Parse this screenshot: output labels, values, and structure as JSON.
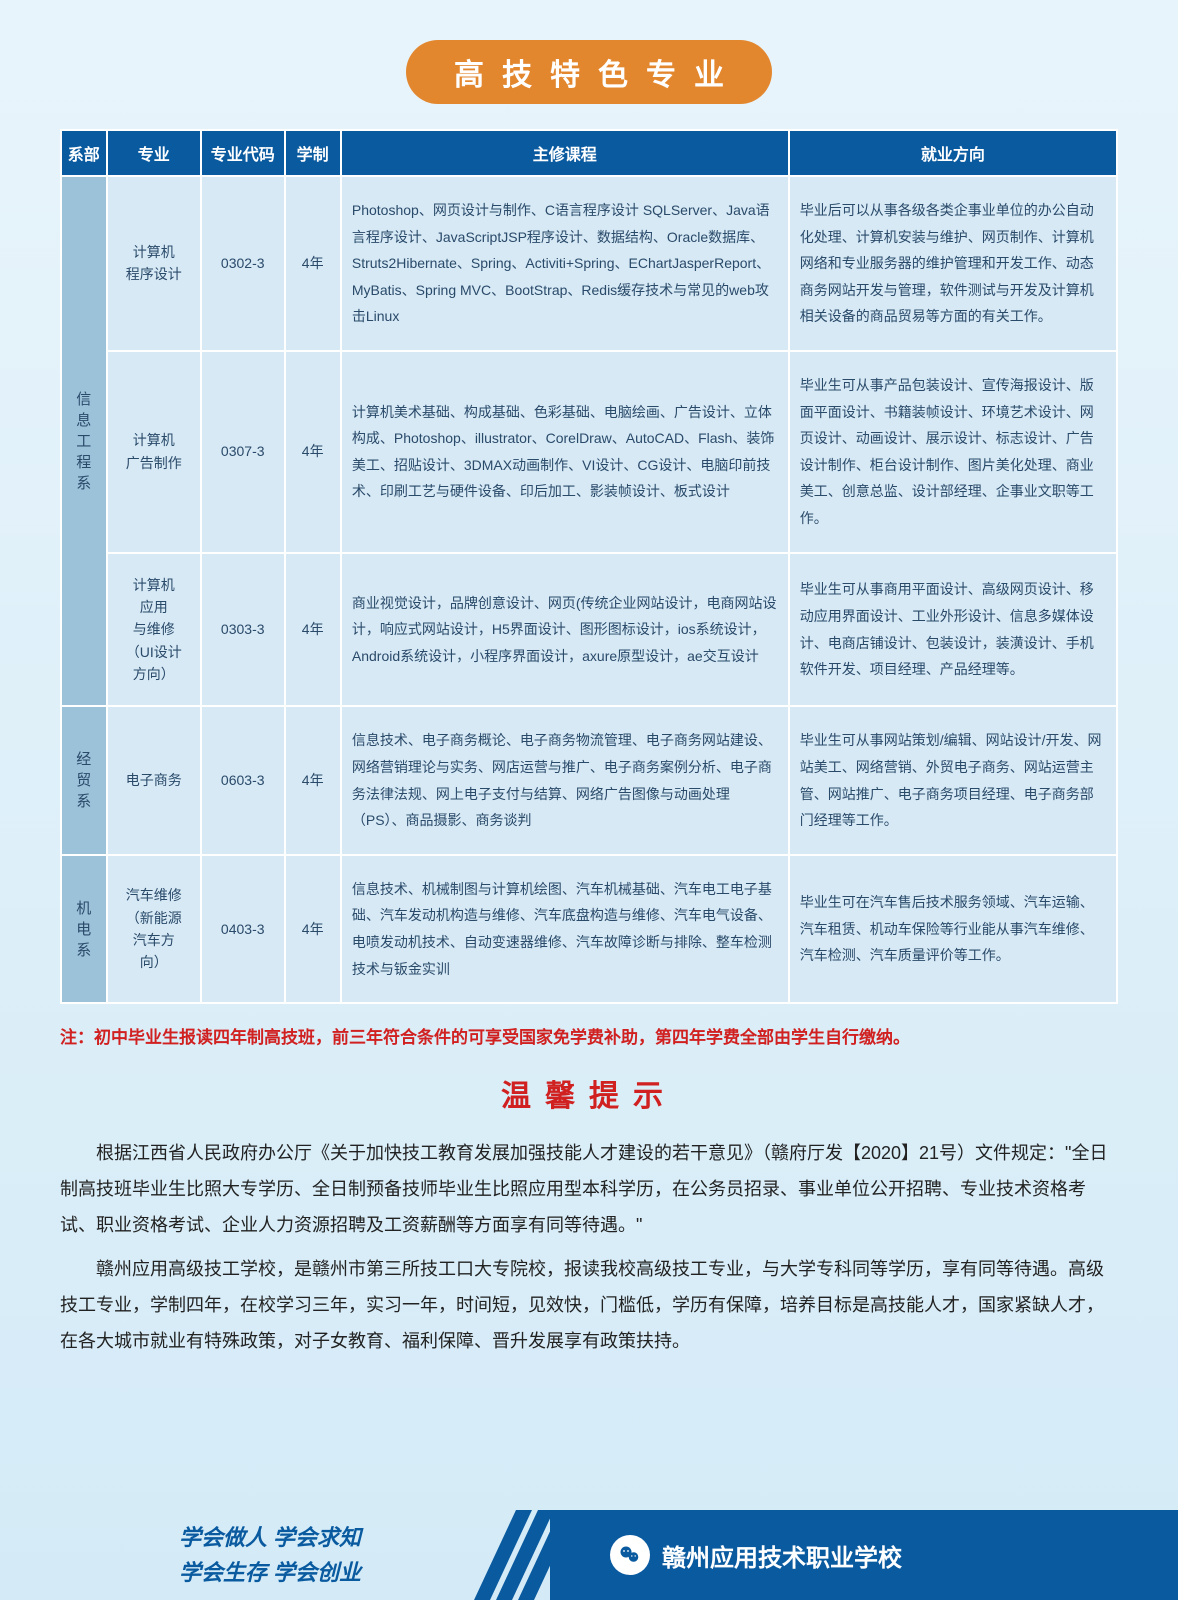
{
  "title": "高技特色专业",
  "columns": [
    "系部",
    "专业",
    "专业代码",
    "学制",
    "主修课程",
    "就业方向"
  ],
  "departments": [
    {
      "name": "信息工程系",
      "rows": [
        {
          "major": "计算机\n程序设计",
          "code": "0302-3",
          "years": "4年",
          "courses": "Photoshop、网页设计与制作、C语言程序设计 SQLServer、Java语言程序设计、JavaScriptJSP程序设计、数据结构、Oracle数据库、Struts2Hibernate、Spring、Activiti+Spring、EChartJasperReport、MyBatis、Spring MVC、BootStrap、Redis缓存技术与常见的web攻击Linux",
          "career": "毕业后可以从事各级各类企事业单位的办公自动化处理、计算机安装与维护、网页制作、计算机网络和专业服务器的维护管理和开发工作、动态商务网站开发与管理，软件测试与开发及计算机相关设备的商品贸易等方面的有关工作。"
        },
        {
          "major": "计算机\n广告制作",
          "code": "0307-3",
          "years": "4年",
          "courses": "计算机美术基础、构成基础、色彩基础、电脑绘画、广告设计、立体构成、Photoshop、illustrator、CorelDraw、AutoCAD、Flash、装饰美工、招贴设计、3DMAX动画制作、VI设计、CG设计、电脑印前技术、印刷工艺与硬件设备、印后加工、影装帧设计、板式设计",
          "career": "毕业生可从事产品包装设计、宣传海报设计、版面平面设计、书籍装帧设计、环境艺术设计、网页设计、动画设计、展示设计、标志设计、广告设计制作、柜台设计制作、图片美化处理、商业美工、创意总监、设计部经理、企事业文职等工作。"
        },
        {
          "major": "计算机\n应用\n与维修\n（UI设计\n方向）",
          "code": "0303-3",
          "years": "4年",
          "courses": "商业视觉设计，品牌创意设计、网页(传统企业网站设计，电商网站设计，响应式网站设计，H5界面设计、图形图标设计，ios系统设计，Android系统设计，小程序界面设计，axure原型设计，ae交互设计",
          "career": "毕业生可从事商用平面设计、高级网页设计、移动应用界面设计、工业外形设计、信息多媒体设计、电商店铺设计、包装设计，装潢设计、手机软件开发、项目经理、产品经理等。"
        }
      ]
    },
    {
      "name": "经贸系",
      "rows": [
        {
          "major": "电子商务",
          "code": "0603-3",
          "years": "4年",
          "courses": "信息技术、电子商务概论、电子商务物流管理、电子商务网站建设、网络营销理论与实务、网店运营与推广、电子商务案例分析、电子商务法律法规、网上电子支付与结算、网络广告图像与动画处理（PS）、商品摄影、商务谈判",
          "career": "毕业生可从事网站策划/编辑、网站设计/开发、网站美工、网络营销、外贸电子商务、网站运营主管、网站推广、电子商务项目经理、电子商务部门经理等工作。"
        }
      ]
    },
    {
      "name": "机电系",
      "rows": [
        {
          "major": "汽车维修\n（新能源\n汽车方\n向）",
          "code": "0403-3",
          "years": "4年",
          "courses": "信息技术、机械制图与计算机绘图、汽车机械基础、汽车电工电子基础、汽车发动机构造与维修、汽车底盘构造与维修、汽车电气设备、电喷发动机技术、自动变速器维修、汽车故障诊断与排除、整车检测技术与钣金实训",
          "career": "毕业生可在汽车售后技术服务领域、汽车运输、汽车租赁、机动车保险等行业能从事汽车维修、汽车检测、汽车质量评价等工作。"
        }
      ]
    }
  ],
  "note": "注：初中毕业生报读四年制高技班，前三年符合条件的可享受国家免学费补助，第四年学费全部由学生自行缴纳。",
  "tips_title": "温馨提示",
  "tips_p1": "根据江西省人民政府办公厅《关于加快技工教育发展加强技能人才建设的若干意见》（赣府厅发【2020】21号）文件规定：\"全日制高技班毕业生比照大专学历、全日制预备技师毕业生比照应用型本科学历，在公务员招录、事业单位公开招聘、专业技术资格考试、职业资格考试、企业人力资源招聘及工资薪酬等方面享有同等待遇。\"",
  "tips_p2": "赣州应用高级技工学校，是赣州市第三所技工口大专院校，报读我校高级技工专业，与大学专科同等学历，享有同等待遇。高级技工专业，学制四年，在校学习三年，实习一年，时间短，见效快，门槛低，学历有保障，培养目标是高技能人才，国家紧缺人才，在各大城市就业有特殊政策，对子女教育、福利保障、晋升发展享有政策扶持。",
  "slogan_l1": "学会做人  学会求知",
  "slogan_l2": "学会生存  学会创业",
  "wechat_name": "赣州应用技术职业学校",
  "colors": {
    "header_bg": "#0a5aa0",
    "badge_bg": "#e3872f",
    "cell_bg": "#d6e9f5",
    "dept_bg": "#9cc2da",
    "note_color": "#d02020",
    "page_bg_top": "#e8f4fb",
    "page_bg_bottom": "#d4ebf7"
  }
}
